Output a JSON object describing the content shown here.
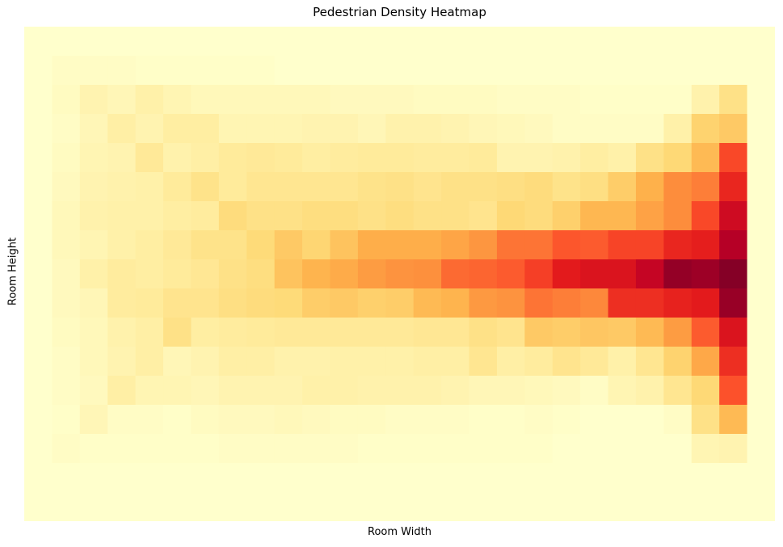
{
  "chart_data": {
    "type": "heatmap",
    "title": "Pedestrian Density Heatmap",
    "xlabel": "Room Width",
    "ylabel": "Room Height",
    "colormap": "YlOrRd",
    "vmin": 0,
    "vmax": 1,
    "grid": false,
    "legend": "none",
    "rows": 17,
    "cols": 27,
    "values": [
      [
        0,
        0,
        0,
        0,
        0,
        0,
        0,
        0,
        0,
        0,
        0,
        0,
        0,
        0,
        0,
        0,
        0,
        0,
        0,
        0,
        0,
        0,
        0,
        0,
        0,
        0,
        0
      ],
      [
        0,
        0.02,
        0.02,
        0.02,
        0.01,
        0.01,
        0.01,
        0.01,
        0.01,
        0,
        0,
        0,
        0,
        0,
        0,
        0,
        0,
        0,
        0,
        0,
        0,
        0,
        0,
        0,
        0,
        0,
        0
      ],
      [
        0,
        0.03,
        0.08,
        0.06,
        0.1,
        0.07,
        0.05,
        0.05,
        0.05,
        0.05,
        0.05,
        0.04,
        0.04,
        0.04,
        0.03,
        0.03,
        0.03,
        0.02,
        0.02,
        0.02,
        0.01,
        0.01,
        0.01,
        0.01,
        0.09,
        0.2,
        0
      ],
      [
        0,
        0.02,
        0.06,
        0.11,
        0.08,
        0.12,
        0.12,
        0.07,
        0.07,
        0.07,
        0.08,
        0.08,
        0.06,
        0.09,
        0.09,
        0.08,
        0.06,
        0.05,
        0.04,
        0.02,
        0.02,
        0.02,
        0.02,
        0.1,
        0.27,
        0.3,
        0
      ],
      [
        0,
        0.03,
        0.07,
        0.08,
        0.15,
        0.09,
        0.11,
        0.14,
        0.15,
        0.14,
        0.12,
        0.13,
        0.14,
        0.14,
        0.13,
        0.13,
        0.14,
        0.08,
        0.08,
        0.09,
        0.12,
        0.1,
        0.2,
        0.25,
        0.35,
        0.64,
        0
      ],
      [
        0,
        0.04,
        0.08,
        0.09,
        0.1,
        0.14,
        0.19,
        0.14,
        0.17,
        0.17,
        0.17,
        0.17,
        0.19,
        0.2,
        0.18,
        0.2,
        0.2,
        0.21,
        0.23,
        0.19,
        0.21,
        0.29,
        0.38,
        0.5,
        0.53,
        0.72,
        0
      ],
      [
        0,
        0.05,
        0.09,
        0.1,
        0.1,
        0.12,
        0.13,
        0.23,
        0.2,
        0.2,
        0.22,
        0.22,
        0.2,
        0.22,
        0.2,
        0.2,
        0.18,
        0.25,
        0.23,
        0.28,
        0.36,
        0.36,
        0.43,
        0.5,
        0.64,
        0.82,
        0
      ],
      [
        0,
        0.05,
        0.07,
        0.1,
        0.12,
        0.15,
        0.19,
        0.19,
        0.24,
        0.3,
        0.26,
        0.32,
        0.39,
        0.39,
        0.39,
        0.42,
        0.47,
        0.55,
        0.55,
        0.61,
        0.6,
        0.65,
        0.65,
        0.72,
        0.74,
        0.89,
        0
      ],
      [
        0,
        0.04,
        0.1,
        0.13,
        0.12,
        0.14,
        0.16,
        0.2,
        0.22,
        0.32,
        0.37,
        0.4,
        0.45,
        0.48,
        0.49,
        0.57,
        0.58,
        0.6,
        0.66,
        0.75,
        0.78,
        0.78,
        0.85,
        0.96,
        0.94,
        0.99,
        0
      ],
      [
        0,
        0.04,
        0.06,
        0.13,
        0.14,
        0.18,
        0.18,
        0.21,
        0.23,
        0.24,
        0.29,
        0.3,
        0.28,
        0.29,
        0.35,
        0.37,
        0.46,
        0.48,
        0.55,
        0.53,
        0.51,
        0.7,
        0.7,
        0.73,
        0.75,
        0.95,
        0
      ],
      [
        0,
        0.03,
        0.05,
        0.09,
        0.11,
        0.2,
        0.12,
        0.13,
        0.14,
        0.15,
        0.15,
        0.15,
        0.15,
        0.15,
        0.16,
        0.16,
        0.2,
        0.18,
        0.3,
        0.29,
        0.31,
        0.3,
        0.35,
        0.45,
        0.6,
        0.78,
        0
      ],
      [
        0,
        0.02,
        0.05,
        0.08,
        0.11,
        0.06,
        0.08,
        0.11,
        0.11,
        0.09,
        0.09,
        0.1,
        0.1,
        0.1,
        0.11,
        0.11,
        0.17,
        0.11,
        0.13,
        0.18,
        0.15,
        0.1,
        0.17,
        0.27,
        0.41,
        0.7,
        0
      ],
      [
        0,
        0.02,
        0.04,
        0.11,
        0.07,
        0.07,
        0.06,
        0.08,
        0.08,
        0.08,
        0.1,
        0.1,
        0.09,
        0.09,
        0.09,
        0.08,
        0.06,
        0.06,
        0.05,
        0.04,
        0.02,
        0.07,
        0.09,
        0.17,
        0.25,
        0.62,
        0
      ],
      [
        0,
        0.01,
        0.06,
        0.02,
        0.02,
        0.01,
        0.03,
        0.04,
        0.04,
        0.05,
        0.04,
        0.03,
        0.03,
        0.02,
        0.02,
        0.02,
        0.01,
        0.01,
        0.02,
        0.01,
        0,
        0,
        0,
        0.02,
        0.2,
        0.35,
        0
      ],
      [
        0,
        0.02,
        0.01,
        0.01,
        0.01,
        0.01,
        0.01,
        0.02,
        0.02,
        0.02,
        0.02,
        0.02,
        0.01,
        0.01,
        0.01,
        0.01,
        0.01,
        0.01,
        0.01,
        0,
        0,
        0,
        0,
        0,
        0.07,
        0.08,
        0
      ],
      [
        0,
        0,
        0,
        0,
        0,
        0,
        0,
        0,
        0,
        0,
        0,
        0,
        0,
        0,
        0,
        0,
        0,
        0,
        0,
        0,
        0,
        0,
        0,
        0,
        0,
        0,
        0
      ],
      [
        0,
        0,
        0,
        0,
        0,
        0,
        0,
        0,
        0,
        0,
        0,
        0,
        0,
        0,
        0,
        0,
        0,
        0,
        0,
        0,
        0,
        0,
        0,
        0,
        0,
        0,
        0
      ]
    ]
  }
}
